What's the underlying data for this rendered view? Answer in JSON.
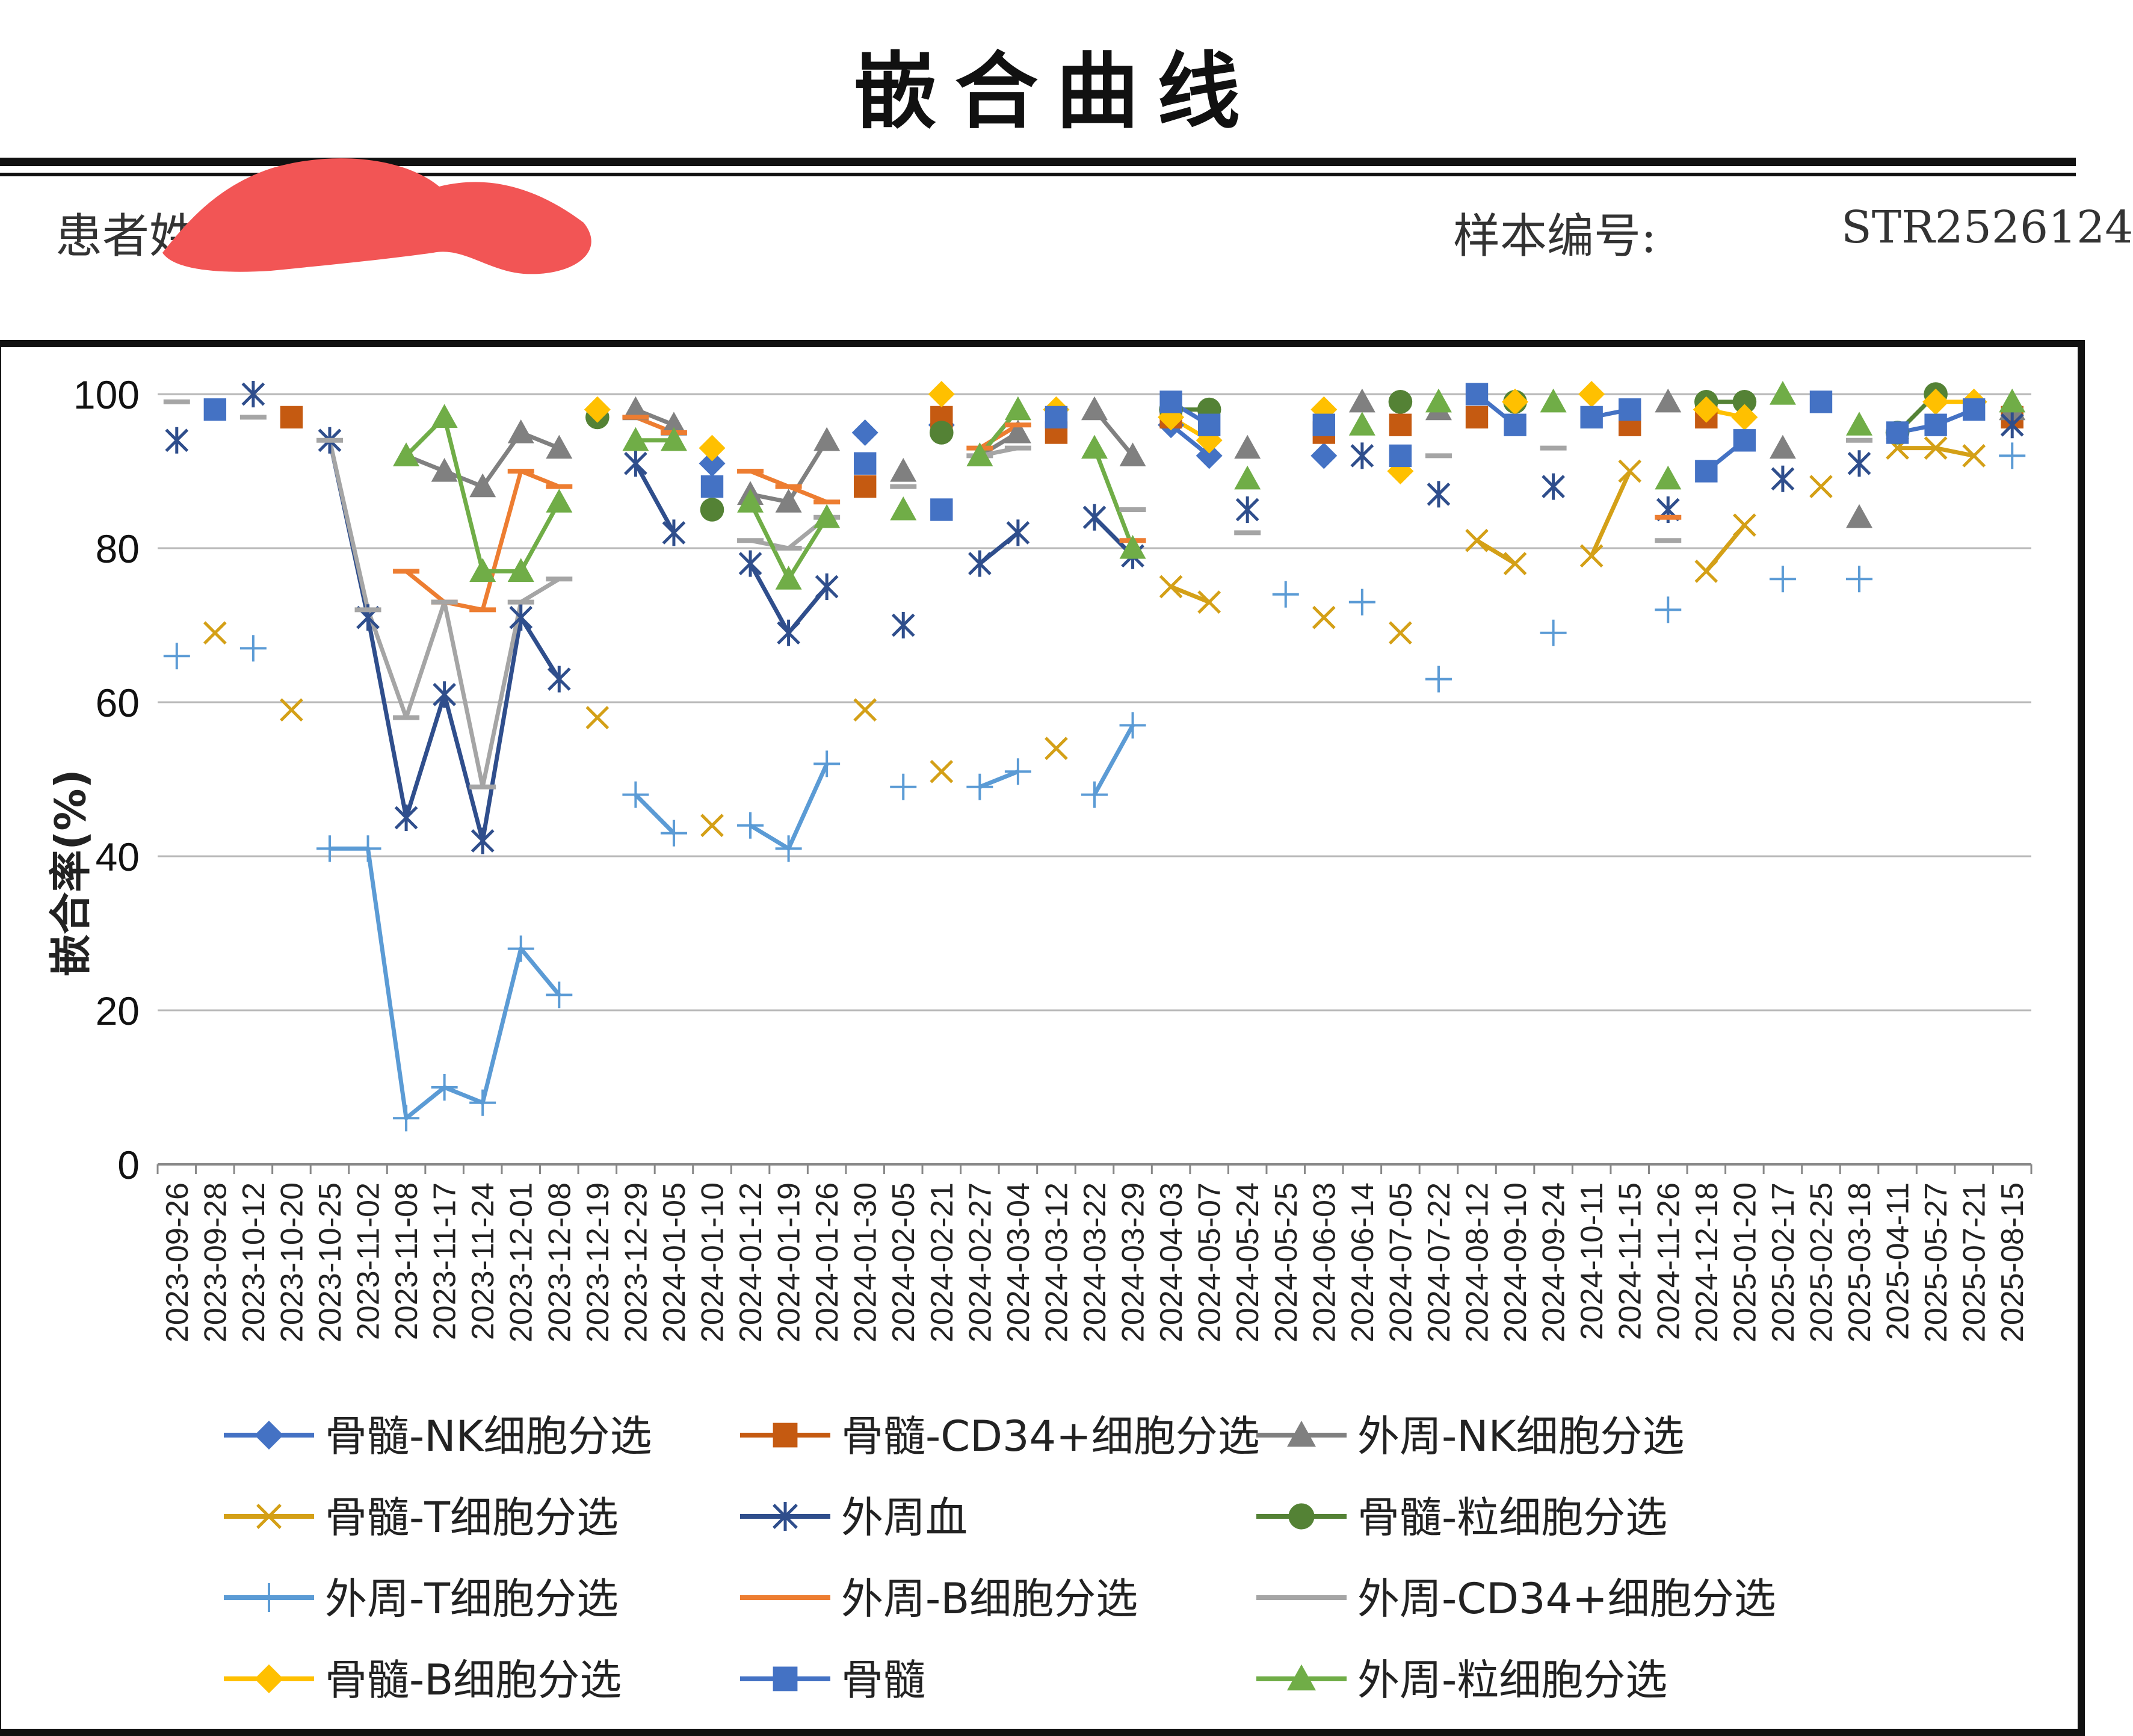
{
  "header": {
    "title": "嵌合曲线",
    "patient_name_label": "患者姓名",
    "sample_label": "样本编号:",
    "sample_value": "STR2526124"
  },
  "chart_data": {
    "type": "line",
    "title": "",
    "xlabel": "",
    "ylabel": "嵌合率(%)",
    "ylim": [
      0,
      100
    ],
    "yticks": [
      0,
      20,
      40,
      60,
      80,
      100
    ],
    "grid": true,
    "legend_position": "bottom",
    "categories": [
      "2023-09-26",
      "2023-09-28",
      "2023-10-12",
      "2023-10-20",
      "2023-10-25",
      "2023-11-02",
      "2023-11-08",
      "2023-11-17",
      "2023-11-24",
      "2023-12-01",
      "2023-12-08",
      "2023-12-19",
      "2023-12-29",
      "2024-01-05",
      "2024-01-10",
      "2024-01-12",
      "2024-01-19",
      "2024-01-26",
      "2024-01-30",
      "2024-02-05",
      "2024-02-21",
      "2024-02-27",
      "2024-03-04",
      "2024-03-12",
      "2024-03-22",
      "2024-03-29",
      "2024-04-03",
      "2024-05-07",
      "2024-05-24",
      "2024-05-25",
      "2024-06-03",
      "2024-06-14",
      "2024-07-05",
      "2024-07-22",
      "2024-08-12",
      "2024-09-10",
      "2024-09-24",
      "2024-10-11",
      "2024-11-15",
      "2024-11-26",
      "2024-12-18",
      "2025-01-20",
      "2025-02-17",
      "2025-02-25",
      "2025-03-18",
      "2025-04-11",
      "2025-05-27",
      "2025-07-21",
      "2025-08-15"
    ],
    "series": [
      {
        "name": "骨髓-NK细胞分选",
        "color": "#4472C4",
        "marker": "diamond",
        "dash": "",
        "values": [
          null,
          null,
          null,
          null,
          null,
          null,
          null,
          null,
          null,
          null,
          null,
          null,
          null,
          null,
          91,
          null,
          null,
          null,
          95,
          null,
          96,
          null,
          null,
          null,
          null,
          null,
          96,
          92,
          null,
          null,
          92,
          null,
          null,
          null,
          null,
          null,
          null,
          null,
          null,
          null,
          null,
          null,
          null,
          null,
          null,
          null,
          null,
          null,
          null
        ]
      },
      {
        "name": "骨髓-CD34+细胞分选",
        "color": "#C55A11",
        "marker": "square",
        "dash": "",
        "values": [
          null,
          null,
          null,
          97,
          null,
          null,
          null,
          null,
          null,
          null,
          null,
          null,
          null,
          null,
          null,
          null,
          null,
          null,
          88,
          null,
          97,
          null,
          null,
          95,
          null,
          null,
          97,
          null,
          null,
          null,
          95,
          null,
          96,
          null,
          97,
          null,
          null,
          null,
          96,
          null,
          97,
          null,
          null,
          null,
          null,
          null,
          null,
          null,
          97
        ]
      },
      {
        "name": "外周-NK细胞分选",
        "color": "#808080",
        "marker": "triangle",
        "dash": "",
        "values": [
          null,
          null,
          null,
          null,
          null,
          null,
          92,
          90,
          88,
          95,
          93,
          null,
          98,
          96,
          null,
          87,
          86,
          94,
          null,
          90,
          null,
          92,
          95,
          null,
          98,
          92,
          null,
          null,
          93,
          null,
          null,
          99,
          null,
          98,
          null,
          null,
          null,
          null,
          null,
          99,
          null,
          null,
          93,
          null,
          84,
          null,
          null,
          null,
          98
        ]
      },
      {
        "name": "骨髓-T细胞分选",
        "color": "#D4A017",
        "marker": "x",
        "dash": "",
        "values": [
          null,
          69,
          null,
          59,
          null,
          null,
          null,
          null,
          null,
          null,
          null,
          58,
          null,
          null,
          44,
          null,
          null,
          null,
          59,
          null,
          51,
          null,
          null,
          54,
          null,
          null,
          75,
          73,
          null,
          null,
          71,
          null,
          69,
          null,
          81,
          78,
          null,
          79,
          90,
          null,
          77,
          83,
          null,
          88,
          null,
          93,
          93,
          92,
          null
        ]
      },
      {
        "name": "外周血",
        "color": "#2F4E8C",
        "marker": "star",
        "dash": "",
        "values": [
          94,
          null,
          100,
          null,
          94,
          71,
          45,
          61,
          42,
          71,
          63,
          null,
          91,
          82,
          null,
          78,
          69,
          75,
          null,
          70,
          null,
          78,
          82,
          null,
          84,
          79,
          null,
          null,
          85,
          null,
          null,
          92,
          null,
          87,
          null,
          null,
          88,
          null,
          null,
          85,
          null,
          null,
          89,
          null,
          91,
          null,
          null,
          null,
          96
        ]
      },
      {
        "name": "骨髓-粒细胞分选",
        "color": "#548235",
        "marker": "circle",
        "dash": "",
        "values": [
          null,
          null,
          null,
          null,
          null,
          null,
          null,
          null,
          null,
          null,
          null,
          97,
          null,
          null,
          85,
          null,
          null,
          null,
          null,
          null,
          95,
          null,
          null,
          null,
          null,
          null,
          98,
          98,
          null,
          null,
          null,
          null,
          99,
          null,
          null,
          99,
          null,
          null,
          null,
          null,
          99,
          99,
          null,
          null,
          null,
          95,
          100,
          null,
          null
        ]
      },
      {
        "name": "外周-T细胞分选",
        "color": "#5B9BD5",
        "marker": "plus",
        "dash": "",
        "values": [
          66,
          null,
          67,
          null,
          41,
          41,
          6,
          10,
          8,
          28,
          22,
          null,
          48,
          43,
          null,
          44,
          41,
          52,
          null,
          49,
          null,
          49,
          51,
          null,
          48,
          57,
          null,
          null,
          null,
          74,
          null,
          73,
          null,
          63,
          null,
          null,
          69,
          null,
          null,
          72,
          null,
          null,
          76,
          null,
          76,
          null,
          null,
          null,
          92
        ]
      },
      {
        "name": "外周-B细胞分选",
        "color": "#ED7D31",
        "marker": "none",
        "dash": "",
        "values": [
          null,
          null,
          null,
          null,
          null,
          null,
          77,
          73,
          72,
          90,
          88,
          null,
          97,
          95,
          null,
          90,
          88,
          86,
          null,
          null,
          null,
          93,
          96,
          null,
          null,
          81,
          null,
          null,
          null,
          null,
          null,
          null,
          null,
          null,
          null,
          null,
          null,
          null,
          null,
          84,
          null,
          null,
          null,
          null,
          null,
          null,
          null,
          null,
          null
        ]
      },
      {
        "name": "外周-CD34+细胞分选",
        "color": "#A5A5A5",
        "marker": "none",
        "dash": "",
        "values": [
          99,
          null,
          97,
          null,
          94,
          72,
          58,
          73,
          49,
          73,
          76,
          null,
          null,
          null,
          null,
          81,
          80,
          84,
          null,
          88,
          null,
          92,
          93,
          null,
          null,
          85,
          null,
          null,
          82,
          null,
          null,
          null,
          null,
          92,
          null,
          null,
          93,
          null,
          null,
          81,
          null,
          null,
          null,
          null,
          94,
          null,
          null,
          null,
          null
        ]
      },
      {
        "name": "骨髓-B细胞分选",
        "color": "#FFC000",
        "marker": "diamond",
        "dash": "",
        "values": [
          null,
          null,
          null,
          null,
          null,
          null,
          null,
          null,
          null,
          null,
          null,
          98,
          null,
          null,
          93,
          null,
          null,
          null,
          null,
          null,
          100,
          null,
          null,
          98,
          null,
          null,
          97,
          94,
          null,
          null,
          98,
          null,
          90,
          null,
          null,
          99,
          null,
          100,
          null,
          null,
          98,
          97,
          null,
          null,
          null,
          null,
          99,
          99,
          null
        ]
      },
      {
        "name": "骨髓",
        "color": "#4472C4",
        "marker": "square",
        "dash": "",
        "values": [
          null,
          98,
          null,
          null,
          null,
          null,
          null,
          null,
          null,
          null,
          null,
          null,
          null,
          null,
          88,
          null,
          null,
          null,
          91,
          null,
          85,
          null,
          null,
          97,
          null,
          null,
          99,
          96,
          null,
          null,
          96,
          null,
          92,
          null,
          100,
          96,
          null,
          97,
          98,
          null,
          90,
          94,
          null,
          99,
          null,
          95,
          96,
          98,
          null
        ]
      },
      {
        "name": "外周-粒细胞分选",
        "color": "#70AD47",
        "marker": "triangle",
        "dash": "",
        "values": [
          null,
          null,
          null,
          null,
          null,
          null,
          92,
          97,
          77,
          77,
          86,
          null,
          94,
          94,
          null,
          86,
          76,
          84,
          null,
          85,
          null,
          92,
          98,
          null,
          93,
          80,
          null,
          null,
          89,
          null,
          null,
          96,
          null,
          99,
          null,
          null,
          99,
          null,
          null,
          89,
          null,
          null,
          100,
          null,
          96,
          null,
          null,
          null,
          99
        ]
      }
    ]
  }
}
